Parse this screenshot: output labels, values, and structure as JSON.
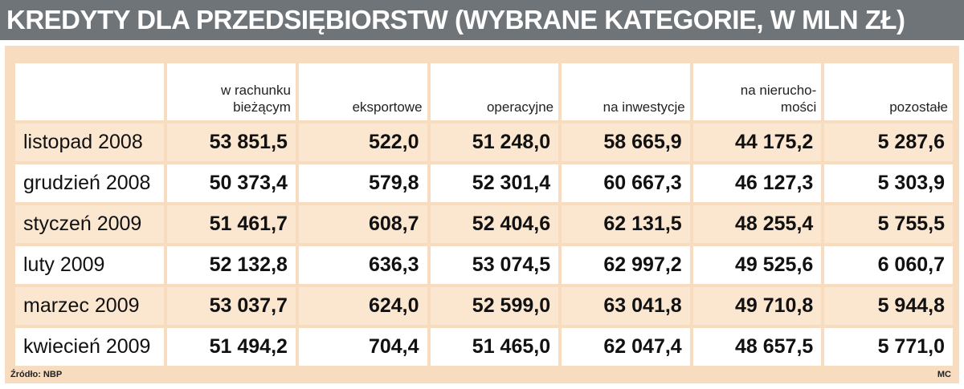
{
  "title": "KREDYTY DLA PRZEDSIĘBIORSTW (WYBRANE KATEGORIE, W MLN ZŁ)",
  "columns": [
    "w rachunku\nbieżącym",
    "eksportowe",
    "operacyjne",
    "na inwestycje",
    "na nierucho-\nmości",
    "pozostałe"
  ],
  "rows": [
    {
      "label": "listopad 2008",
      "values": [
        "53 851,5",
        "522,0",
        "51 248,0",
        "58 665,9",
        "44 175,2",
        "5 287,6"
      ]
    },
    {
      "label": "grudzień 2008",
      "values": [
        "50 373,4",
        "579,8",
        "52 301,4",
        "60 667,3",
        "46 127,3",
        "5 303,9"
      ]
    },
    {
      "label": "styczeń 2009",
      "values": [
        "51 461,7",
        "608,7",
        "52 404,6",
        "62 131,5",
        "48 255,4",
        "5 755,5"
      ]
    },
    {
      "label": "luty 2009",
      "values": [
        "52 132,8",
        "636,3",
        "53 074,5",
        "62 997,2",
        "49 525,6",
        "6 060,7"
      ]
    },
    {
      "label": "marzec 2009",
      "values": [
        "53 037,7",
        "624,0",
        "52 599,0",
        "63 041,8",
        "49 710,8",
        "5 944,8"
      ]
    },
    {
      "label": "kwiecień 2009",
      "values": [
        "51 494,2",
        "704,4",
        "51 465,0",
        "62 047,4",
        "48 657,5",
        "5 771,0"
      ]
    }
  ],
  "source": "Źródło: NBP",
  "author": "MC",
  "colors": {
    "title_bar": "#6f7478",
    "panel": "#f7dcc0",
    "row_tint": "#fbe7d0",
    "row_plain": "#ffffff"
  }
}
